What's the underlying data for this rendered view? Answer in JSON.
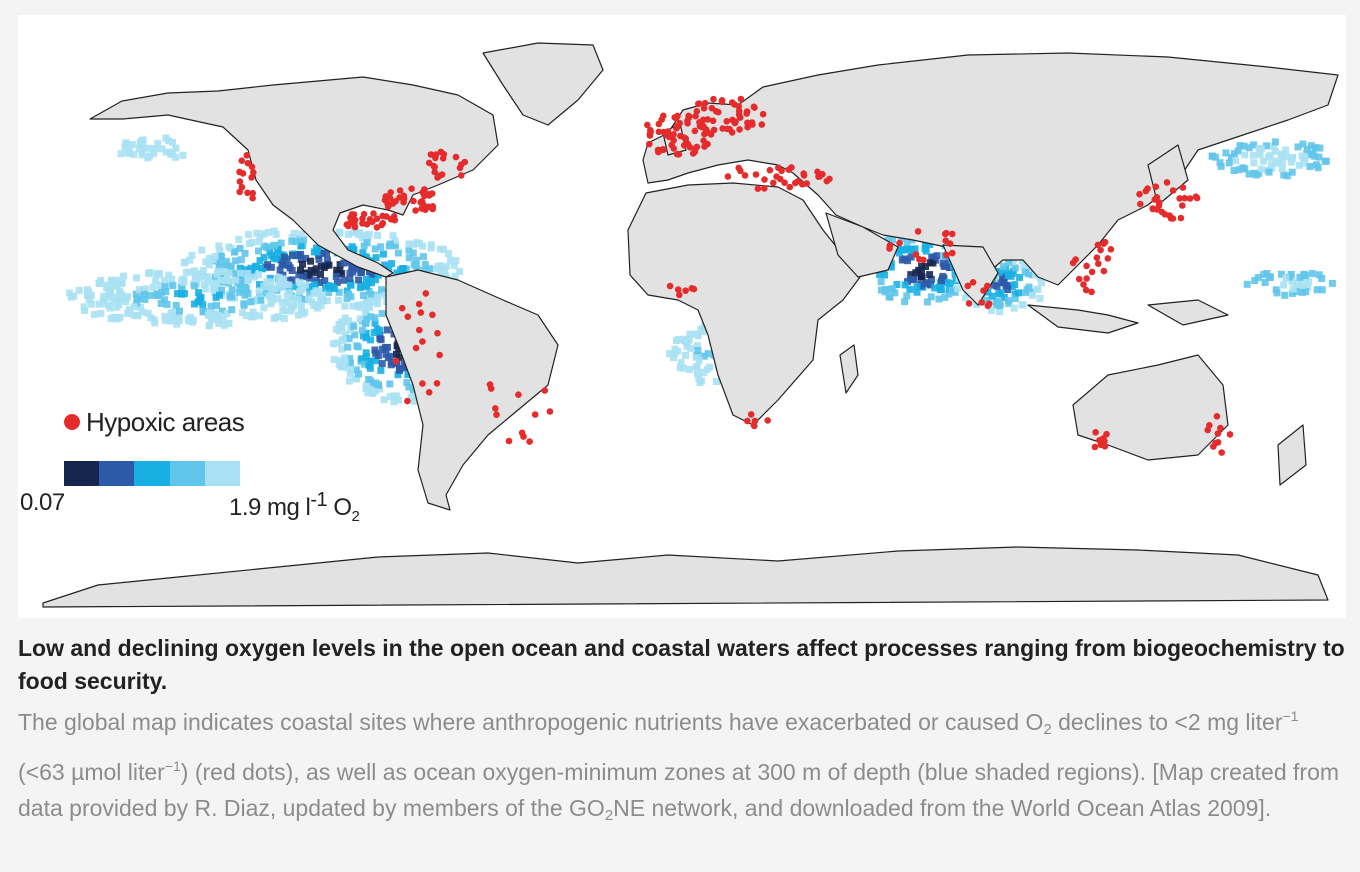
{
  "legend": {
    "hypoxic_label": "Hypoxic areas",
    "scale_min": "0.07",
    "scale_max": "1.9 mg l",
    "scale_max_exp": "-1",
    "scale_max_unit": "O",
    "scale_max_sub": "2",
    "scale_colors": [
      "#16264f",
      "#2c5aa8",
      "#18b0e3",
      "#60c5ea",
      "#a8e1f3"
    ],
    "hypoxic_color": "#e52b2b"
  },
  "caption": {
    "title": "Low and declining oxygen levels in the open ocean and coastal waters affect processes ranging from biogeochemistry to food security.",
    "body_1": "The global map indicates coastal sites where anthropogenic nutrients have exacerbated or caused O",
    "body_1_sub": "2",
    "body_2": " declines to <2 mg liter",
    "body_2_sup": "−1",
    "body_3": " (<63 µmol liter",
    "body_3_sup": "−1",
    "body_4": ") (red dots), as well as ocean oxygen-minimum zones at 300 m of depth (blue shaded regions). [Map created from data provided by R. Diaz, updated by members of the GO",
    "body_4_sub": "2",
    "body_5": "NE network, and downloaded from the World Ocean Atlas 2009]."
  },
  "map": {
    "land_color": "#e2e2e2",
    "coast_color": "#222222"
  }
}
